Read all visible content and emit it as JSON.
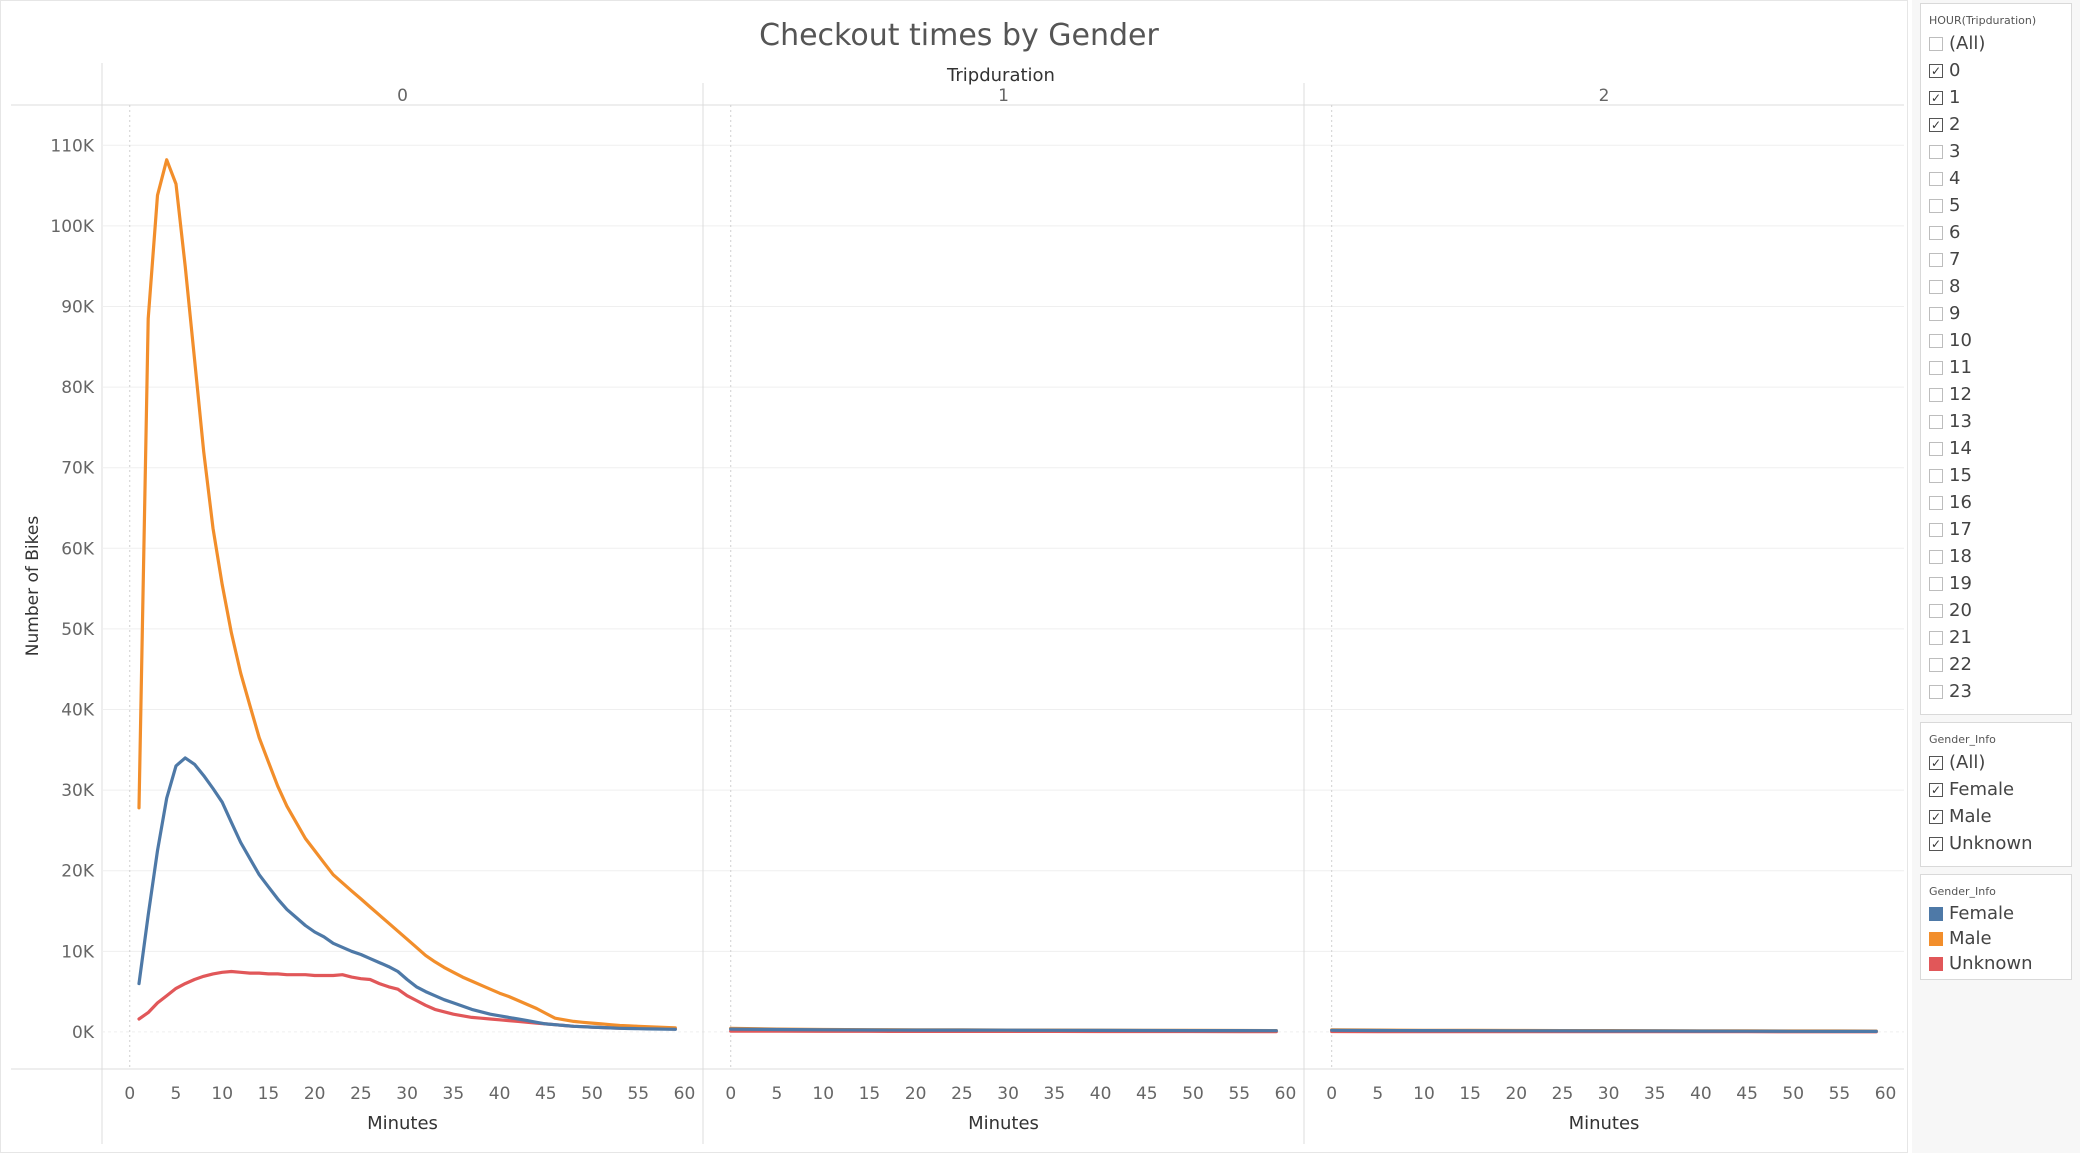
{
  "chart_data": {
    "type": "line",
    "title": "Checkout times by Gender",
    "column_header": "Tripduration",
    "panels": [
      {
        "hour": "0",
        "x": [
          1,
          2,
          3,
          4,
          5,
          6,
          7,
          8,
          9,
          10,
          11,
          12,
          13,
          14,
          15,
          16,
          17,
          18,
          19,
          20,
          21,
          22,
          23,
          24,
          25,
          26,
          27,
          28,
          29,
          30,
          31,
          32,
          33,
          34,
          35,
          36,
          37,
          38,
          39,
          40,
          41,
          42,
          43,
          44,
          45,
          46,
          47,
          48,
          49,
          50,
          51,
          52,
          53,
          54,
          55,
          56,
          57,
          58,
          59
        ],
        "series": [
          {
            "name": "Male",
            "values": [
              27800,
              88500,
              103800,
              108200,
              105200,
              95000,
              83500,
              72000,
              62500,
              55500,
              49500,
              44500,
              40500,
              36500,
              33500,
              30500,
              28000,
              26000,
              24000,
              22500,
              21000,
              19500,
              18500,
              17500,
              16500,
              15500,
              14500,
              13500,
              12500,
              11500,
              10500,
              9500,
              8700,
              8000,
              7400,
              6800,
              6300,
              5800,
              5300,
              4800,
              4400,
              3900,
              3400,
              2900,
              2300,
              1700,
              1500,
              1300,
              1200,
              1100,
              1000,
              900,
              800,
              750,
              700,
              650,
              600,
              550,
              500
            ]
          },
          {
            "name": "Female",
            "values": [
              6000,
              14500,
              22500,
              29000,
              33000,
              34000,
              33200,
              31800,
              30200,
              28500,
              26000,
              23500,
              21500,
              19500,
              18000,
              16500,
              15200,
              14200,
              13200,
              12400,
              11800,
              11000,
              10500,
              10000,
              9600,
              9100,
              8600,
              8100,
              7500,
              6500,
              5600,
              5000,
              4500,
              4000,
              3600,
              3200,
              2800,
              2500,
              2200,
              2000,
              1800,
              1600,
              1400,
              1200,
              1000,
              900,
              800,
              700,
              650,
              600,
              550,
              500,
              450,
              420,
              400,
              380,
              360,
              340,
              320
            ]
          },
          {
            "name": "Unknown",
            "values": [
              1600,
              2400,
              3600,
              4500,
              5400,
              6000,
              6500,
              6900,
              7200,
              7400,
              7500,
              7400,
              7300,
              7300,
              7200,
              7200,
              7100,
              7100,
              7100,
              7000,
              7000,
              7000,
              7100,
              6800,
              6600,
              6500,
              6000,
              5600,
              5300,
              4500,
              3900,
              3300,
              2800,
              2500,
              2200,
              2000,
              1800,
              1700,
              1600,
              1500,
              1400,
              1300,
              1200,
              1100,
              1000,
              900,
              800,
              700,
              650,
              600,
              550,
              500,
              480,
              460,
              440,
              420,
              400,
              380,
              360
            ]
          }
        ]
      },
      {
        "hour": "1",
        "x": [
          0,
          5,
          10,
          15,
          20,
          25,
          30,
          35,
          40,
          45,
          50,
          55,
          59
        ],
        "series": [
          {
            "name": "Male",
            "values": [
              450,
              350,
              300,
              280,
              260,
              250,
              230,
              220,
              210,
              200,
              190,
              180,
              170
            ]
          },
          {
            "name": "Female",
            "values": [
              350,
              300,
              260,
              240,
              230,
              220,
              210,
              200,
              190,
              180,
              170,
              160,
              150
            ]
          },
          {
            "name": "Unknown",
            "values": [
              100,
              90,
              80,
              80,
              70,
              70,
              60,
              60,
              50,
              50,
              50,
              40,
              40
            ]
          }
        ]
      },
      {
        "hour": "2",
        "x": [
          0,
          5,
          10,
          15,
          20,
          25,
          30,
          35,
          40,
          45,
          50,
          55,
          59
        ],
        "series": [
          {
            "name": "Male",
            "values": [
              250,
              220,
              200,
              190,
              180,
              170,
              160,
              150,
              140,
              130,
              120,
              110,
              100
            ]
          },
          {
            "name": "Female",
            "values": [
              200,
              180,
              160,
              150,
              140,
              130,
              120,
              110,
              100,
              90,
              80,
              70,
              60
            ]
          },
          {
            "name": "Unknown",
            "values": [
              50,
              45,
              40,
              40,
              35,
              35,
              30,
              30,
              25,
              25,
              20,
              20,
              20
            ]
          }
        ]
      }
    ],
    "xlabel": "Minutes",
    "ylabel": "Number of Bikes",
    "ylim": [
      -4600,
      115000
    ],
    "xlim": [
      -3,
      62
    ],
    "y_ticks": [
      0,
      10000,
      20000,
      30000,
      40000,
      50000,
      60000,
      70000,
      80000,
      90000,
      100000,
      110000
    ],
    "y_tick_labels": [
      "0K",
      "10K",
      "20K",
      "30K",
      "40K",
      "50K",
      "60K",
      "70K",
      "80K",
      "90K",
      "100K",
      "110K"
    ],
    "x_ticks": [
      0,
      5,
      10,
      15,
      20,
      25,
      30,
      35,
      40,
      45,
      50,
      55,
      60
    ],
    "x_tick_labels": [
      "0",
      "5",
      "10",
      "15",
      "20",
      "25",
      "30",
      "35",
      "40",
      "45",
      "50",
      "55",
      "60"
    ],
    "grid": true,
    "legend_placement": "right",
    "colors": {
      "Female": "#4e79a7",
      "Male": "#f28e2b",
      "Unknown": "#e15759"
    }
  },
  "filters": {
    "hour": {
      "title": "HOUR(Tripduration)",
      "items": [
        {
          "label": "(All)",
          "checked": false
        },
        {
          "label": "0",
          "checked": true
        },
        {
          "label": "1",
          "checked": true
        },
        {
          "label": "2",
          "checked": true
        },
        {
          "label": "3",
          "checked": false
        },
        {
          "label": "4",
          "checked": false
        },
        {
          "label": "5",
          "checked": false
        },
        {
          "label": "6",
          "checked": false
        },
        {
          "label": "7",
          "checked": false
        },
        {
          "label": "8",
          "checked": false
        },
        {
          "label": "9",
          "checked": false
        },
        {
          "label": "10",
          "checked": false
        },
        {
          "label": "11",
          "checked": false
        },
        {
          "label": "12",
          "checked": false
        },
        {
          "label": "13",
          "checked": false
        },
        {
          "label": "14",
          "checked": false
        },
        {
          "label": "15",
          "checked": false
        },
        {
          "label": "16",
          "checked": false
        },
        {
          "label": "17",
          "checked": false
        },
        {
          "label": "18",
          "checked": false
        },
        {
          "label": "19",
          "checked": false
        },
        {
          "label": "20",
          "checked": false
        },
        {
          "label": "21",
          "checked": false
        },
        {
          "label": "22",
          "checked": false
        },
        {
          "label": "23",
          "checked": false
        }
      ]
    },
    "gender": {
      "title": "Gender_Info",
      "items": [
        {
          "label": "(All)",
          "checked": true
        },
        {
          "label": "Female",
          "checked": true
        },
        {
          "label": "Male",
          "checked": true
        },
        {
          "label": "Unknown",
          "checked": true
        }
      ]
    }
  },
  "legend": {
    "title": "Gender_Info",
    "items": [
      {
        "label": "Female",
        "color": "#4e79a7"
      },
      {
        "label": "Male",
        "color": "#f28e2b"
      },
      {
        "label": "Unknown",
        "color": "#e15759"
      }
    ]
  }
}
